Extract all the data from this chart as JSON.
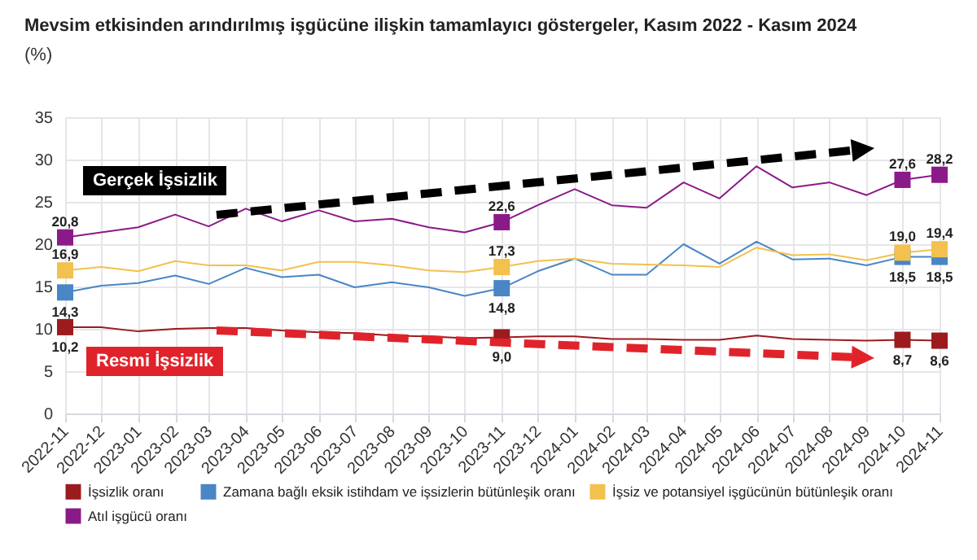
{
  "chart_data": {
    "type": "line",
    "title": "Mevsim etkisinden arındırılmış işgücüne ilişkin tamamlayıcı göstergeler, Kasım 2022 - Kasım 2024",
    "subtitle": "(%)",
    "xlim": [
      "2022-11",
      "2024-11"
    ],
    "xticks": [
      "2022-11",
      "2022-12",
      "2023-01",
      "2023-02",
      "2023-03",
      "2023-04",
      "2023-05",
      "2023-06",
      "2023-07",
      "2023-08",
      "2023-09",
      "2023-10",
      "2023-11",
      "2023-12",
      "2024-01",
      "2024-02",
      "2024-03",
      "2024-04",
      "2024-05",
      "2024-06",
      "2024-07",
      "2024-08",
      "2024-09",
      "2024-10",
      "2024-11"
    ],
    "x": [
      "2022-11",
      "2022-12",
      "2023-01",
      "2023-02",
      "2023-03",
      "2023-04",
      "2023-05",
      "2023-06",
      "2023-07",
      "2023-08",
      "2023-09",
      "2023-10",
      "2023-11",
      "2023-12",
      "2024-01",
      "2024-02",
      "2024-03",
      "2024-04",
      "2024-05",
      "2024-06",
      "2024-07",
      "2024-08",
      "2024-09",
      "2024-10",
      "2024-11"
    ],
    "series": [
      {
        "name": "İşsizlik oranı",
        "color": "#9b1b1e",
        "values": [
          10.2,
          10.2,
          9.7,
          10.0,
          10.1,
          10.1,
          9.8,
          9.6,
          9.5,
          9.2,
          9.1,
          8.9,
          9.0,
          9.1,
          9.1,
          8.8,
          8.8,
          8.7,
          8.7,
          9.2,
          8.8,
          8.7,
          8.6,
          8.7,
          8.6
        ]
      },
      {
        "name": "Zamana bağlı eksik istihdam ve işsizlerin bütünleşik oranı",
        "color": "#4a86c5",
        "values": [
          14.3,
          15.1,
          15.4,
          16.3,
          15.3,
          17.2,
          16.1,
          16.4,
          14.9,
          15.5,
          14.9,
          13.9,
          14.8,
          16.8,
          18.3,
          16.4,
          16.4,
          20.0,
          17.7,
          20.3,
          18.2,
          18.3,
          17.5,
          18.5,
          18.5
        ]
      },
      {
        "name": "İşsiz ve potansiyel işgücünün bütünleşik oranı",
        "color": "#f2c14e",
        "values": [
          16.9,
          17.3,
          16.8,
          18.0,
          17.5,
          17.5,
          16.9,
          17.9,
          17.9,
          17.5,
          16.9,
          16.7,
          17.3,
          18.0,
          18.3,
          17.7,
          17.6,
          17.5,
          17.3,
          19.6,
          18.7,
          18.8,
          18.1,
          19.0,
          19.4
        ]
      },
      {
        "name": "Atıl işgücü oranı",
        "color": "#8b1a89",
        "values": [
          20.8,
          21.4,
          22.0,
          23.5,
          22.1,
          24.2,
          22.7,
          24.0,
          22.7,
          23.0,
          22.0,
          21.4,
          22.6,
          24.6,
          26.5,
          24.6,
          24.3,
          27.3,
          25.4,
          29.2,
          26.7,
          27.3,
          25.8,
          27.6,
          28.2
        ]
      },
      {
        "type": "scatter",
        "marker": "square",
        "color": "#9b1b1e",
        "x": [
          "2022-11",
          "2023-11",
          "2024-10",
          "2024-11"
        ],
        "values": [
          10.2,
          9.0,
          8.7,
          8.6
        ],
        "value_labels": [
          "10,2",
          "9,0",
          "8,7",
          "8,6"
        ]
      },
      {
        "type": "scatter",
        "marker": "square",
        "color": "#4a86c5",
        "x": [
          "2022-11",
          "2023-11",
          "2024-10",
          "2024-11"
        ],
        "values": [
          14.3,
          14.8,
          18.5,
          18.5
        ],
        "value_labels": [
          "14,3",
          "14,8",
          "18,5",
          "18,5"
        ]
      },
      {
        "type": "scatter",
        "marker": "square",
        "color": "#f2c14e",
        "x": [
          "2022-11",
          "2023-11",
          "2024-10",
          "2024-11"
        ],
        "values": [
          16.9,
          17.3,
          19.0,
          19.4
        ],
        "value_labels": [
          "16,9",
          "17,3",
          "19,0",
          "19,4"
        ]
      },
      {
        "type": "scatter",
        "marker": "square",
        "color": "#8b1a89",
        "x": [
          "2022-11",
          "2023-11",
          "2024-10",
          "2024-11"
        ],
        "values": [
          20.8,
          22.6,
          27.6,
          28.2
        ],
        "value_labels": [
          "20,8",
          "22,6",
          "27,6",
          "28,2"
        ]
      }
    ],
    "ylim": [
      0,
      35
    ],
    "yticks": [
      0,
      5,
      10,
      15,
      20,
      25,
      30,
      35
    ],
    "grid": true,
    "legend": "bottom",
    "annotations": [
      "Gerçek İşsizlik",
      "Resmi İşsizlik"
    ]
  }
}
